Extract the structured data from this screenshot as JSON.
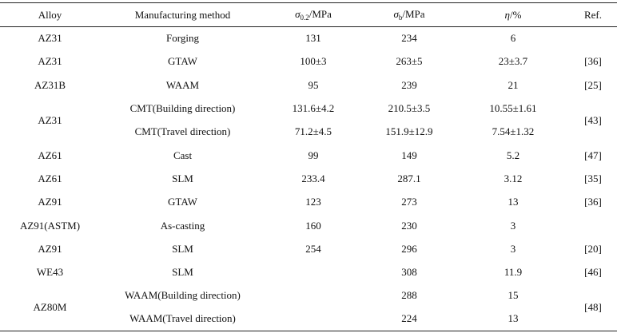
{
  "headers": {
    "alloy": "Alloy",
    "method": "Manufacturing method",
    "yield_symbol": "σ",
    "yield_sub": "0.2",
    "yield_unit": "/MPa",
    "uts_symbol": "σ",
    "uts_sub": "b",
    "uts_unit": "/MPa",
    "elong_symbol": "η",
    "elong_unit": "/%",
    "ref": "Ref."
  },
  "rows": [
    {
      "alloy": "AZ31",
      "method": "Forging",
      "yield": "131",
      "uts": "234",
      "elong": "6",
      "ref": ""
    },
    {
      "alloy": "AZ31",
      "method": "GTAW",
      "yield": "100±3",
      "uts": "263±5",
      "elong": "23±3.7",
      "ref": "[36]"
    },
    {
      "alloy": "AZ31B",
      "method": "WAAM",
      "yield": "95",
      "uts": "239",
      "elong": "21",
      "ref": "[25]"
    },
    {
      "alloy": "AZ31",
      "method": "CMT(Building direction)",
      "yield": "131.6±4.2",
      "uts": "210.5±3.5",
      "elong": "10.55±1.61",
      "ref": "[43]"
    },
    {
      "alloy": "",
      "method": "CMT(Travel direction)",
      "yield": "71.2±4.5",
      "uts": "151.9±12.9",
      "elong": "7.54±1.32",
      "ref": ""
    },
    {
      "alloy": "AZ61",
      "method": "Cast",
      "yield": "99",
      "uts": "149",
      "elong": "5.2",
      "ref": "[47]"
    },
    {
      "alloy": "AZ61",
      "method": "SLM",
      "yield": "233.4",
      "uts": "287.1",
      "elong": "3.12",
      "ref": "[35]"
    },
    {
      "alloy": "AZ91",
      "method": "GTAW",
      "yield": "123",
      "uts": "273",
      "elong": "13",
      "ref": "[36]"
    },
    {
      "alloy": "AZ91(ASTM)",
      "method": "As-casting",
      "yield": "160",
      "uts": "230",
      "elong": "3",
      "ref": ""
    },
    {
      "alloy": "AZ91",
      "method": "SLM",
      "yield": "254",
      "uts": "296",
      "elong": "3",
      "ref": "[20]"
    },
    {
      "alloy": "WE43",
      "method": "SLM",
      "yield": "",
      "uts": "308",
      "elong": "11.9",
      "ref": "[46]"
    },
    {
      "alloy": "AZ80M",
      "method": "WAAM(Building direction)",
      "yield": "",
      "uts": "288",
      "elong": "15",
      "ref": "[48]"
    },
    {
      "alloy": "",
      "method": "WAAM(Travel direction)",
      "yield": "",
      "uts": "224",
      "elong": "13",
      "ref": ""
    }
  ]
}
